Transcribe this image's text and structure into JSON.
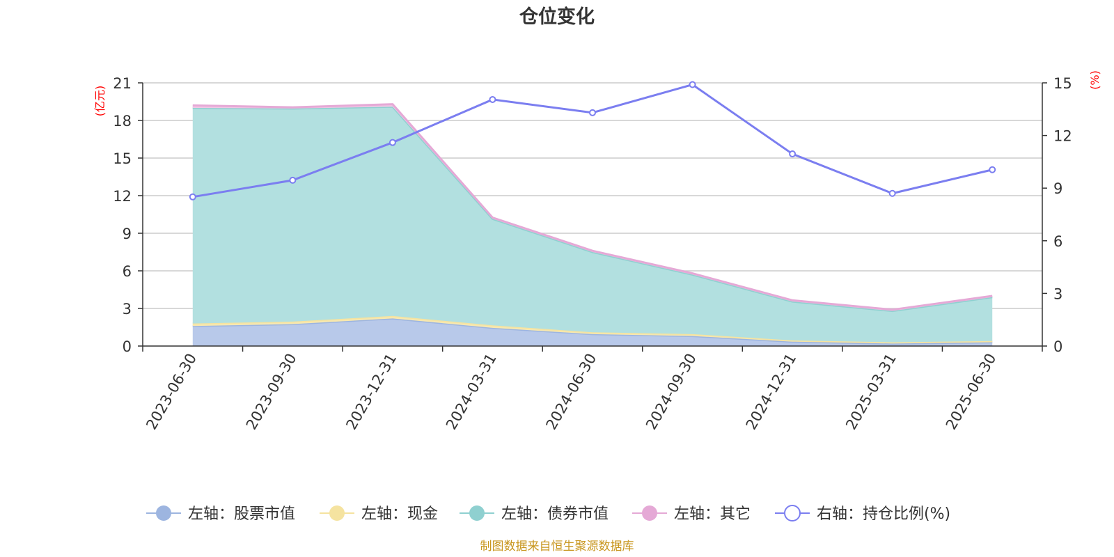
{
  "chart_data": {
    "type": "area",
    "title": "仓位变化",
    "left_axis_unit": "(亿元)",
    "right_axis_unit": "(%)",
    "categories": [
      "2023-06-30",
      "2023-09-30",
      "2023-12-31",
      "2024-03-31",
      "2024-06-30",
      "2024-09-30",
      "2024-12-31",
      "2025-03-31",
      "2025-06-30"
    ],
    "left_ylim": [
      0,
      21
    ],
    "left_yticks": [
      0,
      3,
      6,
      9,
      12,
      15,
      18,
      21
    ],
    "right_ylim": [
      0,
      15
    ],
    "right_yticks": [
      0,
      3,
      6,
      9,
      12,
      15
    ],
    "stacked": true,
    "grid": true,
    "legend_position": "bottom",
    "series": [
      {
        "name": "左轴：股票市值",
        "axis": "left",
        "type": "area",
        "color": "#9db5e0",
        "fill": "#b8c9ea",
        "values": [
          1.6,
          1.75,
          2.2,
          1.45,
          0.95,
          0.8,
          0.35,
          0.2,
          0.3
        ]
      },
      {
        "name": "左轴：现金",
        "axis": "left",
        "type": "area",
        "color": "#f5e3a0",
        "fill": "#f7e8b0",
        "values": [
          0.2,
          0.2,
          0.2,
          0.2,
          0.15,
          0.15,
          0.1,
          0.1,
          0.1
        ]
      },
      {
        "name": "左轴：债券市值",
        "axis": "left",
        "type": "area",
        "color": "#8fd0d0",
        "fill": "#b2e0e0",
        "values": [
          17.2,
          17.0,
          16.7,
          8.5,
          6.4,
          4.75,
          3.1,
          2.5,
          3.5
        ]
      },
      {
        "name": "左轴：其它",
        "axis": "left",
        "type": "area",
        "color": "#e5a9d6",
        "fill": "#f0c8e6",
        "values": [
          0.2,
          0.1,
          0.2,
          0.1,
          0.1,
          0.1,
          0.1,
          0.1,
          0.1
        ]
      },
      {
        "name": "右轴：持仓比例(%)",
        "axis": "right",
        "type": "line",
        "color": "#7b7ef0",
        "values": [
          8.5,
          9.45,
          11.6,
          14.05,
          13.3,
          14.9,
          10.95,
          8.7,
          10.05
        ]
      }
    ],
    "source_note": "制图数据来自恒生聚源数据库"
  }
}
